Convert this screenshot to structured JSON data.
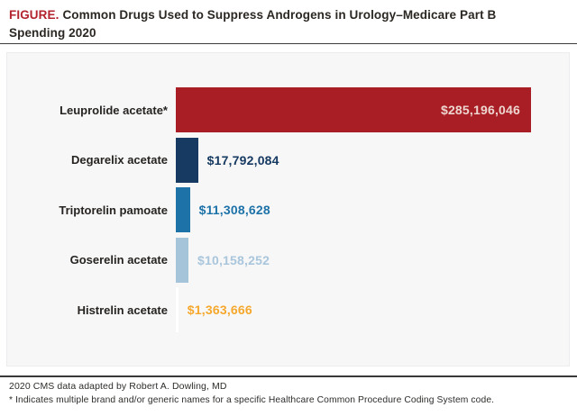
{
  "figure": {
    "label": "FIGURE.",
    "title": "Common Drugs Used to Suppress Androgens in Urology–Medicare Part B Spending 2020",
    "source": "2020 CMS data adapted by Robert A. Dowling, MD",
    "footnote": "* Indicates multiple brand and/or generic names for a specific Healthcare Common Procedure Coding System code."
  },
  "colors": {
    "figure_label_red": "#b2232e",
    "title_text": "#2b2723",
    "panel_background": "#f7f7f8",
    "rule_dark": "#3c3c3c"
  },
  "chart_data": {
    "type": "bar",
    "orientation": "horizontal",
    "title": "Common Drugs Used to Suppress Androgens in Urology–Medicare Part B Spending 2020",
    "xlabel": "",
    "ylabel": "",
    "grid": false,
    "legend": false,
    "xlim": [
      0,
      285196046
    ],
    "categories": [
      "Leuprolide acetate*",
      "Degarelix acetate",
      "Triptorelin pamoate",
      "Goserelin acetate",
      "Histrelin acetate"
    ],
    "values": [
      285196046,
      17792084,
      11308628,
      10158252,
      1363666
    ],
    "value_labels": [
      "$285,196,046",
      "$17,792,084",
      "$11,308,628",
      "$10,158,252",
      "$1,363,666"
    ],
    "bar_colors": [
      "#a81e24",
      "#163a61",
      "#1d72a8",
      "#a5c4da",
      "#ffffff"
    ],
    "value_label_colors": [
      "#eed6d0",
      "#163a61",
      "#1d72a8",
      "#a9c6dc",
      "#f5a82c"
    ],
    "value_label_placement": [
      "inside",
      "outside",
      "outside",
      "outside",
      "outside"
    ]
  }
}
